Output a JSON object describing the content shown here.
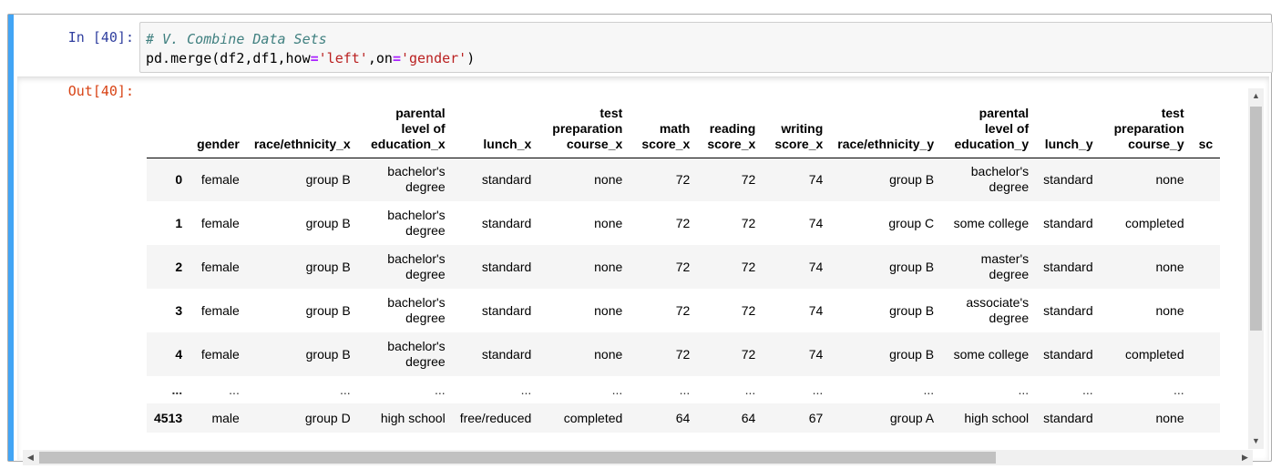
{
  "input": {
    "prompt": "In [40]:",
    "code_comment": "# V. Combine Data Sets",
    "code": {
      "fn": "pd.merge(df2,df1,how",
      "eq1": "=",
      "how_val": "'left'",
      "comma": ",on",
      "eq2": "=",
      "on_val": "'gender'",
      "close": ")"
    }
  },
  "output": {
    "prompt": "Out[40]:",
    "table": {
      "columns": [
        "",
        "gender",
        "race/ethnicity_x",
        "parental level of education_x",
        "lunch_x",
        "test preparation course_x",
        "math score_x",
        "reading score_x",
        "writing score_x",
        "race/ethnicity_y",
        "parental level of education_y",
        "lunch_y",
        "test preparation course_y",
        "sc"
      ],
      "rows": [
        [
          "0",
          "female",
          "group B",
          "bachelor's degree",
          "standard",
          "none",
          "72",
          "72",
          "74",
          "group B",
          "bachelor's degree",
          "standard",
          "none",
          ""
        ],
        [
          "1",
          "female",
          "group B",
          "bachelor's degree",
          "standard",
          "none",
          "72",
          "72",
          "74",
          "group C",
          "some college",
          "standard",
          "completed",
          ""
        ],
        [
          "2",
          "female",
          "group B",
          "bachelor's degree",
          "standard",
          "none",
          "72",
          "72",
          "74",
          "group B",
          "master's degree",
          "standard",
          "none",
          ""
        ],
        [
          "3",
          "female",
          "group B",
          "bachelor's degree",
          "standard",
          "none",
          "72",
          "72",
          "74",
          "group B",
          "associate's degree",
          "standard",
          "none",
          ""
        ],
        [
          "4",
          "female",
          "group B",
          "bachelor's degree",
          "standard",
          "none",
          "72",
          "72",
          "74",
          "group B",
          "some college",
          "standard",
          "completed",
          ""
        ],
        [
          "...",
          "...",
          "...",
          "...",
          "...",
          "...",
          "...",
          "...",
          "...",
          "...",
          "...",
          "...",
          "...",
          ""
        ],
        [
          "4513",
          "male",
          "group D",
          "high school",
          "free/reduced",
          "completed",
          "64",
          "64",
          "67",
          "group A",
          "high school",
          "standard",
          "none",
          ""
        ]
      ]
    }
  },
  "scrollbars": {
    "up_arrow": "▲",
    "down_arrow": "▼",
    "left_arrow": "◀",
    "right_arrow": "▶"
  },
  "colors": {
    "in_prompt": "#303f9f",
    "out_prompt": "#d84315",
    "cell_accent": "#42a5f5",
    "comment": "#408080",
    "string": "#ba2121",
    "operator": "#aa22ff"
  }
}
